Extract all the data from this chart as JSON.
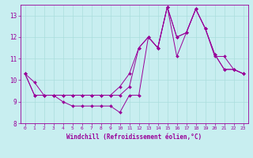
{
  "xlabel": "Windchill (Refroidissement éolien,°C)",
  "background_color": "#c8eef0",
  "plot_color": "#990099",
  "grid_color": "#aadddd",
  "xlim": [
    -0.5,
    23.5
  ],
  "ylim": [
    8,
    13.5
  ],
  "yticks": [
    8,
    9,
    10,
    11,
    12,
    13
  ],
  "xticks": [
    0,
    1,
    2,
    3,
    4,
    5,
    6,
    7,
    8,
    9,
    10,
    11,
    12,
    13,
    14,
    15,
    16,
    17,
    18,
    19,
    20,
    21,
    22,
    23
  ],
  "series": [
    [
      10.3,
      9.9,
      9.3,
      9.3,
      9.0,
      8.8,
      8.8,
      8.8,
      8.8,
      8.8,
      8.5,
      9.3,
      9.3,
      12.0,
      11.5,
      13.4,
      11.1,
      12.2,
      13.3,
      12.4,
      11.1,
      11.1,
      10.5,
      10.3
    ],
    [
      10.3,
      9.3,
      9.3,
      9.3,
      9.3,
      9.3,
      9.3,
      9.3,
      9.3,
      9.3,
      9.3,
      9.7,
      11.5,
      12.0,
      11.5,
      13.4,
      12.0,
      12.2,
      13.3,
      12.4,
      11.2,
      10.5,
      10.5,
      10.3
    ],
    [
      10.3,
      9.3,
      9.3,
      9.3,
      9.3,
      9.3,
      9.3,
      9.3,
      9.3,
      9.3,
      9.7,
      10.3,
      11.5,
      12.0,
      11.5,
      13.4,
      12.0,
      12.2,
      13.3,
      12.4,
      11.2,
      10.5,
      10.5,
      10.3
    ]
  ]
}
